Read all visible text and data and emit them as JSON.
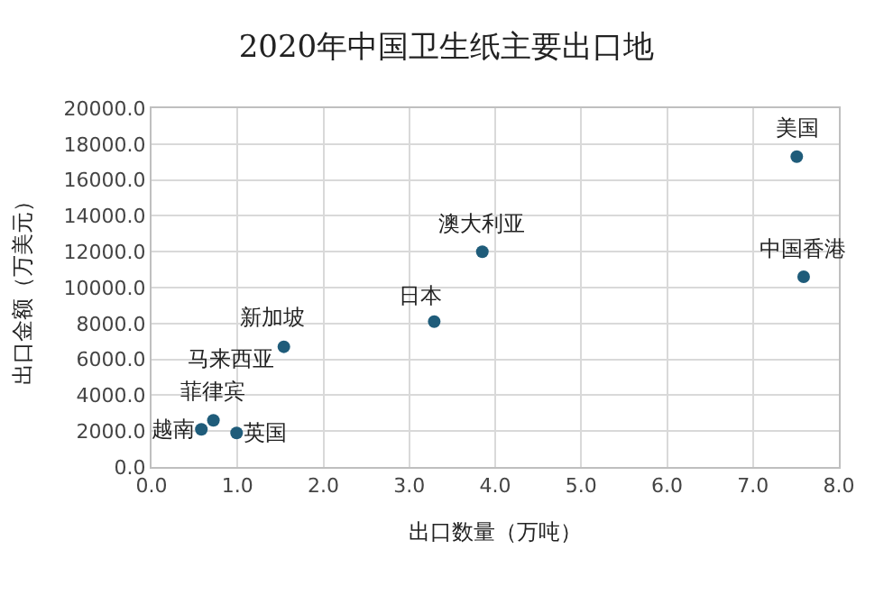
{
  "chart_data": {
    "type": "scatter",
    "title": "2020年中国卫生纸主要出口地",
    "xlabel": "出口数量（万吨）",
    "ylabel": "出口金额（万美元）",
    "series": [
      {
        "color": "#1f5c7a",
        "x": [
          7.51,
          7.59,
          3.85,
          3.29,
          1.54,
          null,
          0.72,
          0.58,
          0.99
        ],
        "values": [
          17300,
          10600,
          12000,
          8100,
          6700,
          null,
          2600,
          2100,
          1900
        ]
      }
    ],
    "annotations": [
      {
        "text": "美国",
        "x": 7.51,
        "y": 17300
      },
      {
        "text": "中国香港",
        "x": 7.59,
        "y": 10600
      },
      {
        "text": "澳大利亚",
        "x": 3.85,
        "y": 12000
      },
      {
        "text": "日本",
        "x": 3.29,
        "y": 8100
      },
      {
        "text": "新加坡",
        "x": 1.54,
        "y": 6700
      },
      "马来西亚",
      {
        "text": "菲律宾",
        "x": 0.72,
        "y": 2600
      },
      {
        "text": "越南",
        "x": 0.58,
        "y": 2100
      },
      {
        "text": "英国",
        "x": 0.99,
        "y": 1900
      }
    ],
    "xlim": [
      0,
      8
    ],
    "xticks": [
      {
        "value": 0,
        "label": "0.0"
      },
      {
        "value": 1,
        "label": "1.0"
      },
      {
        "value": 2,
        "label": "2.0"
      },
      {
        "value": 3,
        "label": "3.0"
      },
      {
        "value": 4,
        "label": "4.0"
      },
      {
        "value": 5,
        "label": "5.0"
      },
      {
        "value": 6,
        "label": "6.0"
      },
      {
        "value": 7,
        "label": "7.0"
      },
      {
        "value": 8,
        "label": "8.0"
      }
    ],
    "ylim": [
      0,
      20000
    ],
    "yticks": [
      {
        "value": 0,
        "label": "0.0"
      },
      {
        "value": 2000,
        "label": "2000.0"
      },
      {
        "value": 4000,
        "label": "4000.0"
      },
      {
        "value": 6000,
        "label": "6000.0"
      },
      {
        "value": 8000,
        "label": "8000.0"
      },
      {
        "value": 10000,
        "label": "10000.0"
      },
      {
        "value": 12000,
        "label": "12000.0"
      },
      {
        "value": 14000,
        "label": "14000.0"
      },
      {
        "value": 16000,
        "label": "16000.0"
      },
      {
        "value": 18000,
        "label": "18000.0"
      },
      {
        "value": 20000,
        "label": "20000.0"
      }
    ],
    "grid": true,
    "marker": "circle",
    "legend": false
  }
}
